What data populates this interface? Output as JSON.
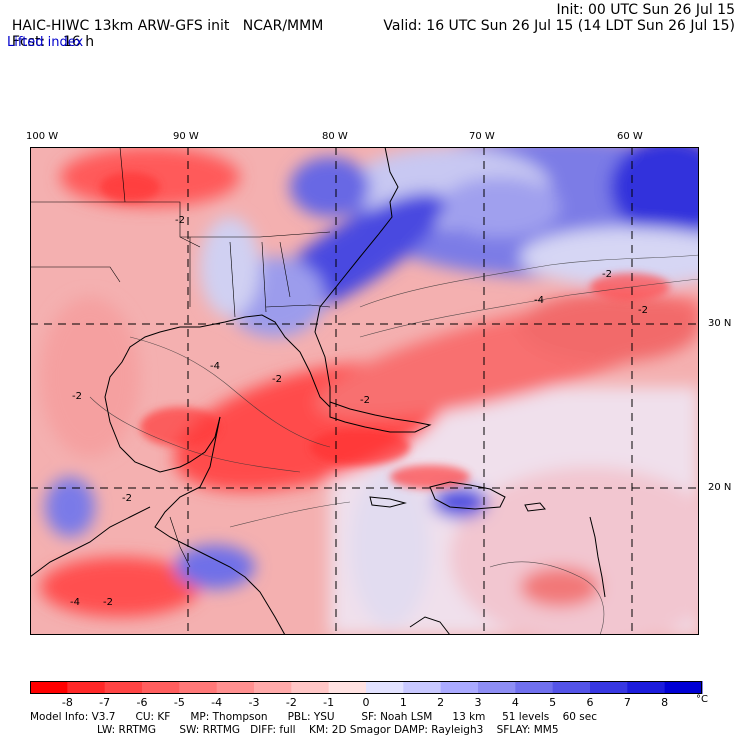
{
  "header": {
    "title": "HAIC-HIWC 13km ARW-GFS init",
    "org": "NCAR/MMM",
    "init": "Init: 00 UTC Sun 26 Jul 15",
    "fcst_label": "Fcst:",
    "fcst_value": "16 h",
    "valid": "Valid: 16 UTC Sun 26 Jul 15 (14 LDT Sun 26 Jul 15)",
    "field": "Lifted index"
  },
  "map": {
    "lon_labels": [
      "100 W",
      "90 W",
      "80 W",
      "70 W",
      "60 W"
    ],
    "lat_labels": [
      "30 N",
      "20 N"
    ],
    "contour_labels": [
      "-2",
      "-4",
      "-2",
      "-2",
      "-2",
      "-4",
      "-2",
      "-2",
      "-4",
      "-2",
      "-2"
    ],
    "colors": {
      "neg_strong": "#ff3030",
      "neg_mid": "#f07a7a",
      "neg_light": "#f8c4c4",
      "pos_light": "#d8d8f4",
      "pos_mid": "#8c8ce8",
      "pos_strong": "#3c3cdc",
      "land_outline": "#000000"
    }
  },
  "colorbar": {
    "labels": [
      "-8",
      "-7",
      "-6",
      "-5",
      "-4",
      "-3",
      "-2",
      "-1",
      "0",
      "1",
      "2",
      "3",
      "4",
      "5",
      "6",
      "7",
      "8"
    ],
    "unit": "°C",
    "colors": [
      "#ff0000",
      "#ff2828",
      "#ff4444",
      "#ff5e5e",
      "#ff7878",
      "#ff9090",
      "#ffaaaa",
      "#ffc6c6",
      "#ffe2e2",
      "#e2e2ff",
      "#c8c8ff",
      "#aaaaff",
      "#8e8ef4",
      "#7070ee",
      "#5454e8",
      "#3838e2",
      "#1c1cdc",
      "#0000d4"
    ]
  },
  "footer": {
    "line1": "Model Info: V3.7      CU: KF      MP: Thompson      PBL: YSU        SF: Noah LSM      13 km     51 levels    60 sec",
    "line2": "LW: RRTMG       SW: RRTMG   DIFF: full    KM: 2D Smagor DAMP: Rayleigh3    SFLAY: MM5"
  }
}
